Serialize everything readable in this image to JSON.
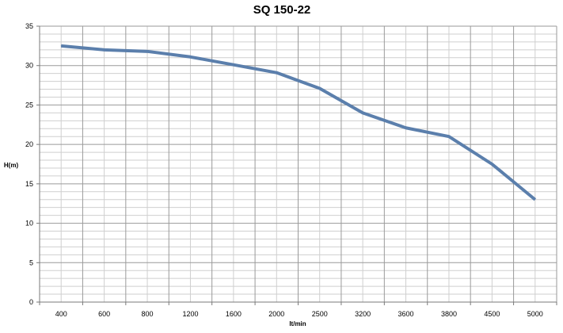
{
  "chart_data": {
    "type": "line",
    "title": "SQ 150-22",
    "xlabel": "lt/min",
    "ylabel": "H(m)",
    "categories": [
      "400",
      "600",
      "800",
      "1200",
      "1600",
      "2000",
      "2500",
      "3200",
      "3600",
      "3800",
      "4500",
      "5000"
    ],
    "series": [
      {
        "values": [
          32.5,
          32.0,
          31.8,
          31.1,
          30.1,
          29.1,
          27.1,
          24.0,
          22.1,
          21.0,
          17.5,
          13.0
        ]
      }
    ],
    "ylim": [
      0,
      35
    ],
    "yticks": [
      0,
      5,
      10,
      15,
      20,
      25,
      30,
      35
    ],
    "grid": true,
    "minor_grid": true,
    "legend": "none",
    "colors": {
      "line": "#5b7fac",
      "grid_major": "#9a9a9a",
      "grid_minor": "#cfcfcf",
      "axis": "#7a7a7a",
      "text": "#000000"
    }
  }
}
